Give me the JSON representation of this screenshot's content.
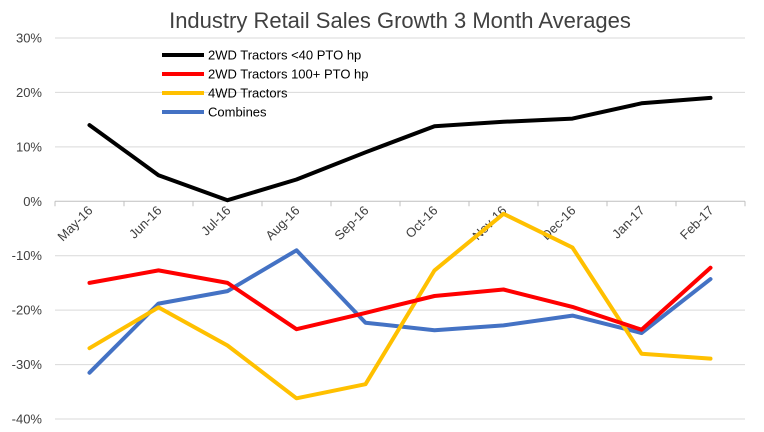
{
  "chart_data": {
    "type": "line",
    "title": "Industry Retail Sales Growth 3 Month Averages",
    "categories": [
      "May-16",
      "Jun-16",
      "Jul-16",
      "Aug-16",
      "Sep-16",
      "Oct-16",
      "Nov-16",
      "Dec-16",
      "Jan-17",
      "Feb-17"
    ],
    "ylim": [
      -40,
      30
    ],
    "yticks": [
      30,
      20,
      10,
      0,
      -10,
      -20,
      -30,
      -40
    ],
    "ytick_labels": [
      "30%",
      "20%",
      "10%",
      "0%",
      "-10%",
      "-20%",
      "-30%",
      "-40%"
    ],
    "grid": true,
    "legend_position": "top-left",
    "series": [
      {
        "name": "2WD Tractors <40 PTO hp",
        "color": "#000000",
        "values": [
          14,
          4.8,
          0.2,
          4,
          9,
          13.8,
          14.6,
          15.2,
          18,
          19
        ]
      },
      {
        "name": "2WD Tractors 100+ PTO hp",
        "color": "#ff0000",
        "values": [
          -15,
          -12.7,
          -15,
          -23.5,
          -20.5,
          -17.4,
          -16.2,
          -19.4,
          -23.6,
          -12.2
        ]
      },
      {
        "name": "4WD Tractors",
        "color": "#ffc000",
        "values": [
          -27,
          -19.5,
          -26.5,
          -36.2,
          -33.6,
          -12.7,
          -2.3,
          -8.5,
          -28,
          -28.9
        ]
      },
      {
        "name": "Combines",
        "color": "#4472c4",
        "values": [
          -31.5,
          -18.8,
          -16.5,
          -9,
          -22.3,
          -23.7,
          -22.8,
          -21,
          -24.2,
          -14.3
        ]
      }
    ]
  }
}
